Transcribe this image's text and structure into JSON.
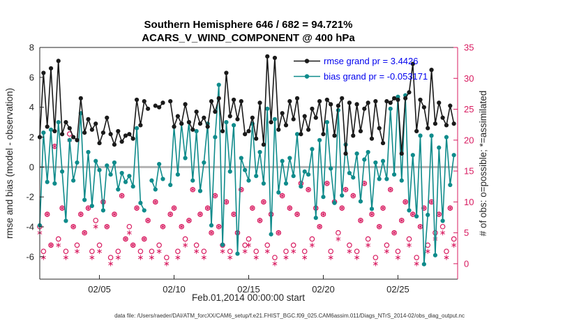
{
  "chart_data": {
    "type": "line",
    "title": "Southern Hemisphere 646 / 682 = 94.721%",
    "subtitle": "ACARS_V_WIND_COMPONENT @ 400 hPa",
    "xlabel": "Feb.01,2014 00:00:00 start",
    "ylabel_left": "rmse and bias (model - observation)",
    "ylabel_right": "# of obs: o=possible; *=assimilated",
    "x_unit": "days since Feb 1, 2014 00:00",
    "x_end_day": 28,
    "t_step_days": 0.25,
    "xticks": [
      {
        "t": 4,
        "label": "02/05"
      },
      {
        "t": 9,
        "label": "02/10"
      },
      {
        "t": 14,
        "label": "02/15"
      },
      {
        "t": 19,
        "label": "02/20"
      },
      {
        "t": 24,
        "label": "02/25"
      }
    ],
    "ylim_left": [
      -7.5,
      8
    ],
    "yticks_left": [
      -6,
      -4,
      -2,
      0,
      2,
      4,
      6,
      8
    ],
    "ylim_right": [
      -2.5,
      35
    ],
    "yticks_right": [
      0,
      5,
      10,
      15,
      20,
      25,
      30,
      35
    ],
    "grid": false,
    "legend_position": "top-right-inside",
    "colors": {
      "rmse": "#1a1a1a",
      "bias": "#0f8b8b",
      "obs": "#d81b60",
      "zero_line": "#b3b3b3",
      "legend_text": "#0000ee",
      "axis": "#262626"
    },
    "legend": [
      {
        "series": "rmse",
        "label": "rmse grand pr = 3.4426"
      },
      {
        "series": "bias",
        "label": "bias grand pr = -0.053171"
      }
    ],
    "series": [
      {
        "name": "rmse",
        "type": "line",
        "axis": "left",
        "values": [
          2.0,
          6.3,
          2.7,
          6.6,
          2.4,
          7.1,
          2.2,
          3.0,
          2.6,
          2.0,
          1.8,
          4.6,
          2.3,
          3.2,
          2.5,
          2.9,
          1.6,
          2.3,
          3.3,
          2.2,
          1.5,
          2.4,
          1.7,
          2.1,
          2.2,
          1.9,
          4.5,
          2.8,
          4.4,
          3.9,
          null,
          4.1,
          4.0,
          4.3,
          null,
          4.4,
          2.7,
          3.4,
          2.9,
          4.2,
          3.0,
          2.5,
          3.7,
          2.9,
          3.3,
          2.7,
          4.4,
          3.7,
          4.6,
          2.4,
          6.3,
          3.4,
          4.5,
          3.2,
          4.4,
          2.2,
          2.4,
          3.3,
          1.9,
          4.3,
          1.5,
          7.4,
          3.0,
          7.3,
          2.5,
          3.6,
          2.8,
          4.4,
          3.2,
          4.6,
          2.2,
          3.4,
          2.5,
          3.9,
          3.3,
          4.4,
          2.2,
          4.5,
          4.2,
          2.1,
          4.1,
          4.6,
          0.9,
          4.3,
          2.1,
          4.2,
          2.4,
          3.9,
          4.3,
          1.9,
          4.4,
          2.6,
          1.6,
          4.4,
          4.3,
          4.6,
          4.5,
          0.9,
          4.6,
          5.0,
          6.9,
          2.4,
          4.5,
          4.0,
          2.6,
          6.5,
          2.9,
          4.3,
          3.3,
          2.8,
          4.1,
          2.9
        ]
      },
      {
        "name": "bias",
        "type": "line",
        "axis": "left",
        "values": [
          -3.9,
          2.3,
          -1.0,
          2.5,
          -1.1,
          3.0,
          -0.3,
          -3.6,
          1.8,
          -0.9,
          0.3,
          3.6,
          -2.2,
          1.0,
          -2.6,
          0.4,
          -0.2,
          -2.9,
          0.1,
          -0.5,
          0.3,
          -1.5,
          -0.4,
          -1.0,
          -0.6,
          -1.3,
          2.6,
          -2.4,
          -2.9,
          null,
          -0.9,
          -1.5,
          0.2,
          -0.8,
          null,
          -1.2,
          2.7,
          -0.5,
          2.9,
          0.6,
          3.0,
          -0.9,
          2.4,
          -1.6,
          0.3,
          2.9,
          -3.9,
          2.0,
          5.5,
          -5.2,
          3.0,
          -0.3,
          2.8,
          -5.8,
          0.6,
          -0.2,
          -0.9,
          2.9,
          -0.6,
          1.0,
          -1.1,
          3.9,
          -4.5,
          3.2,
          -1.7,
          0.4,
          -1.1,
          0.6,
          -0.6,
          2.2,
          -1.3,
          -0.3,
          -0.5,
          1.2,
          -3.4,
          1.8,
          -2.0,
          3.0,
          -0.1,
          -2.4,
          3.8,
          -1.9,
          1.5,
          -0.4,
          -0.7,
          0.9,
          -2.3,
          0.5,
          1.0,
          -2.8,
          0.3,
          -0.8,
          0.4,
          -0.8,
          3.9,
          -0.5,
          4.7,
          -0.9,
          4.8,
          -2.9,
          0.8,
          -3.3,
          2.1,
          -6.5,
          -3.2,
          2.1,
          -5.9,
          1.3,
          -3.6,
          2.0,
          -1.2,
          0.8
        ]
      },
      {
        "name": "possible",
        "type": "scatter-circle",
        "axis": "right",
        "values": [
          6,
          2,
          8,
          3,
          19,
          4,
          9,
          2,
          21,
          6,
          3,
          8,
          5,
          9,
          2,
          7,
          3,
          10,
          6,
          1,
          8,
          2,
          11,
          4,
          6,
          3,
          9,
          2,
          4,
          7,
          2,
          10,
          3,
          6,
          1,
          8,
          9,
          2,
          6,
          4,
          7,
          12,
          3,
          8,
          2,
          9,
          5,
          11,
          6,
          3,
          10,
          2,
          8,
          5,
          12,
          3,
          4,
          9,
          2,
          7,
          10,
          3,
          8,
          1,
          5,
          11,
          2,
          9,
          3,
          8,
          13,
          2,
          12,
          4,
          9,
          6,
          8,
          13,
          2,
          10,
          5,
          9,
          12,
          3,
          11,
          2,
          7,
          13,
          4,
          8,
          1,
          6,
          9,
          3,
          12,
          5,
          2,
          7,
          10,
          4,
          8,
          1,
          6,
          9,
          3,
          10,
          5,
          8,
          6,
          2,
          9,
          4
        ]
      },
      {
        "name": "assimilated",
        "type": "scatter-asterisk",
        "axis": "right",
        "values": [
          5,
          1,
          8,
          3,
          19,
          3,
          9,
          1,
          20,
          6,
          2,
          8,
          5,
          9,
          1,
          6,
          2,
          10,
          6,
          0,
          8,
          1,
          11,
          4,
          5,
          3,
          9,
          1,
          4,
          7,
          1,
          10,
          2,
          6,
          0,
          8,
          9,
          1,
          6,
          3,
          7,
          12,
          2,
          8,
          1,
          9,
          5,
          11,
          6,
          2,
          10,
          1,
          8,
          5,
          12,
          2,
          3,
          9,
          1,
          7,
          10,
          2,
          8,
          0,
          5,
          11,
          1,
          9,
          2,
          8,
          13,
          1,
          12,
          3,
          9,
          6,
          8,
          13,
          1,
          10,
          4,
          9,
          12,
          2,
          11,
          1,
          7,
          13,
          3,
          8,
          0,
          6,
          9,
          2,
          12,
          5,
          1,
          7,
          10,
          3,
          8,
          0,
          6,
          9,
          2,
          10,
          4,
          8,
          5,
          1,
          9,
          3
        ]
      }
    ]
  },
  "footer": {
    "datafile": "data file: /Users/raeder/DAI/ATM_forcXX/CAM6_setup/f.e21.FHIST_BGC.f09_025.CAM6assim.011/Diags_NTrS_2014-02/obs_diag_output.nc"
  }
}
